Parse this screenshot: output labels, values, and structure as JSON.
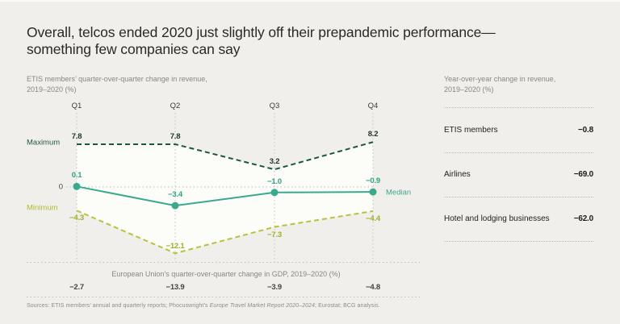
{
  "page": {
    "title_line1": "Overall, telcos ended 2020 just slightly off their prepandemic performance—",
    "title_line2": "something few companies can say",
    "background": "#f1efeb"
  },
  "left_chart": {
    "subtitle_line1": "ETIS members’ quarter-over-quarter change in revenue,",
    "subtitle_line2": "2019–2020 (%)"
  },
  "chart_data": {
    "type": "line",
    "categories": [
      "Q1",
      "Q2",
      "Q3",
      "Q4"
    ],
    "series": [
      {
        "name": "Maximum",
        "values": [
          7.8,
          7.8,
          3.2,
          8.2
        ],
        "style": "dashed",
        "color": "#1a5741",
        "label_color": "#1c352c",
        "label_side": [
          "above",
          "above",
          "above",
          "above"
        ]
      },
      {
        "name": "Median",
        "values": [
          0.1,
          -3.4,
          -1.0,
          -0.9
        ],
        "style": "solid-dots",
        "color": "#3aa98e",
        "label_color": "#2fa186",
        "label_side": [
          "above",
          "above",
          "above",
          "above"
        ]
      },
      {
        "name": "Minimum",
        "values": [
          -4.3,
          -12.1,
          -7.3,
          -4.4
        ],
        "style": "dashed",
        "color": "#b8c23a",
        "label_color": "#a3ad29",
        "label_side": [
          "below",
          "above",
          "below",
          "below"
        ]
      }
    ],
    "axis_zero_label": "0",
    "ylim": [
      -14,
      10
    ],
    "grid": "dotted-vertical-per-quarter",
    "legend_position": "labels-at-line-ends",
    "band_fill": "#fcfcf9",
    "gdp_strip": {
      "title": "European Union’s quarter-over-quarter change in GDP, 2019–2020 (%)",
      "values": [
        -2.7,
        -13.9,
        -3.9,
        -4.8
      ]
    }
  },
  "side_panel": {
    "title_line1": "Year-over-year change in revenue,",
    "title_line2": "2019–2020 (%)",
    "rows": [
      {
        "label": "ETIS members",
        "value": "−0.8"
      },
      {
        "label": "Airlines",
        "value": "−69.0"
      },
      {
        "label": "Hotel and lodging businesses",
        "value": "−62.0"
      }
    ]
  },
  "footer": {
    "prefix": "Sources: ETIS members’ annual and quarterly reports; Phocuswright’s ",
    "italic": "Europe Travel Market Report 2020–2024",
    "suffix": "; Eurostat; BCG analysis."
  }
}
